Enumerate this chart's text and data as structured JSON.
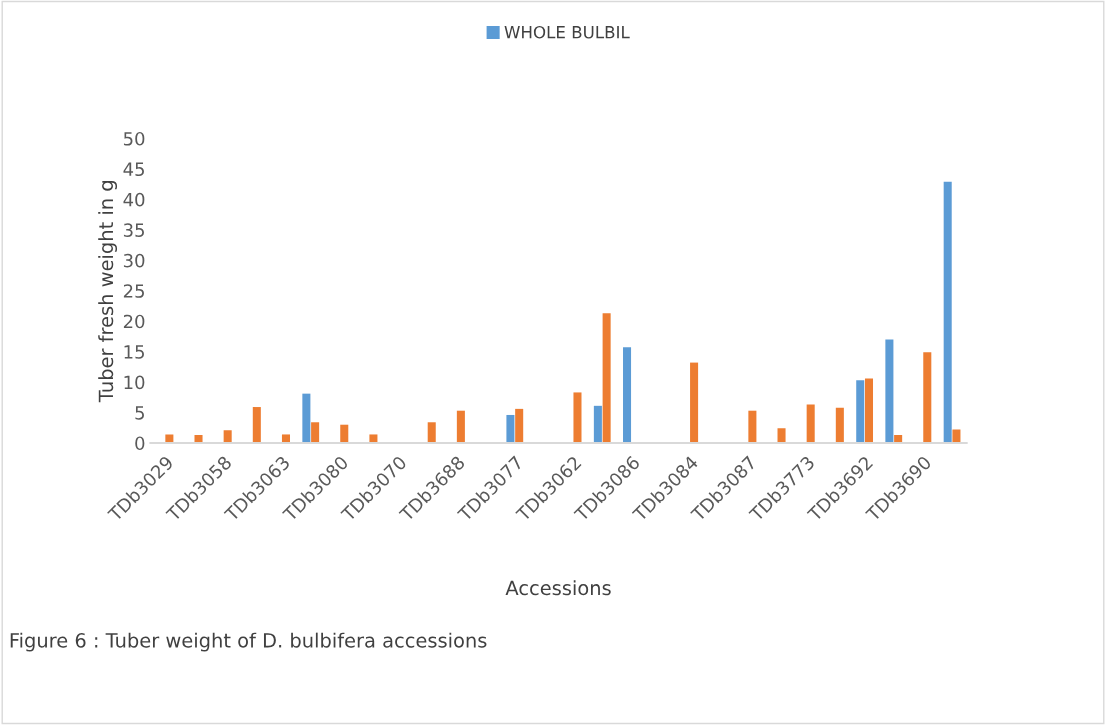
{
  "chart_data": {
    "type": "bar",
    "xlabel": "Accessions",
    "ylabel": "Tuber fresh weight in g",
    "categories": [
      "TDb3029",
      null,
      "TDb3058",
      null,
      "TDb3063",
      null,
      "TDb3080",
      null,
      "TDb3070",
      null,
      "TDb3688",
      null,
      "TDb3077",
      null,
      "TDb3062",
      null,
      "TDb3086",
      null,
      "TDb3084",
      null,
      "TDb3087",
      null,
      "TDb3773",
      null,
      "TDb3692",
      null,
      "TDb3690",
      null
    ],
    "series": [
      {
        "name": "WHOLE BULBIL",
        "color": "#5b9bd5",
        "values": [
          null,
          null,
          null,
          null,
          null,
          8.1,
          null,
          null,
          null,
          null,
          null,
          null,
          4.6,
          null,
          null,
          6.1,
          15.7,
          null,
          null,
          null,
          null,
          null,
          null,
          null,
          10.3,
          17.0,
          null,
          42.9
        ]
      },
      {
        "color": "#ed7d31",
        "values": [
          1.4,
          1.3,
          2.1,
          5.9,
          1.4,
          3.4,
          3.0,
          1.4,
          null,
          3.4,
          5.3,
          null,
          5.6,
          null,
          8.3,
          21.3,
          null,
          null,
          13.2,
          null,
          5.3,
          2.4,
          6.3,
          5.8,
          10.6,
          1.3,
          14.9,
          2.2
        ]
      }
    ],
    "ylim": [
      0,
      50
    ],
    "yticks": [
      0,
      5,
      10,
      15,
      20,
      25,
      30,
      35,
      40,
      45,
      50
    ],
    "grid": false,
    "legend": "top",
    "annotations": [
      "Figure 6 : Tuber weight of D. bulbifera accessions"
    ]
  }
}
